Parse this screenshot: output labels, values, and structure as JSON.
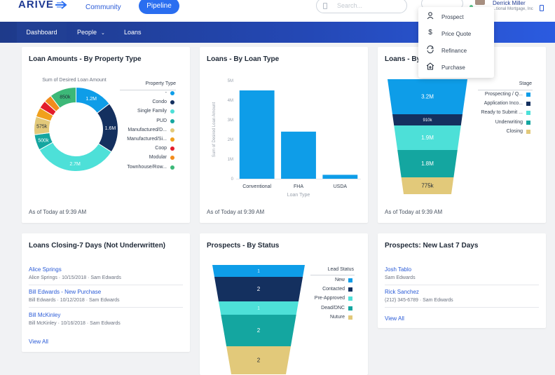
{
  "header": {
    "logo": "ARIVE",
    "nav": [
      {
        "label": "Community"
      },
      {
        "label": "Pipeline"
      }
    ],
    "search_placeholder": "Search...",
    "user": {
      "name": "Derrick Miller",
      "company": "...tional Mortgage, Inc"
    }
  },
  "subnav": {
    "items": [
      {
        "label": "Dashboard"
      },
      {
        "label": "People"
      },
      {
        "label": "Loans"
      }
    ]
  },
  "dropdown": {
    "items": [
      {
        "label": "Prospect",
        "icon": "person-icon"
      },
      {
        "label": "Price Quote",
        "icon": "dollar-icon"
      },
      {
        "label": "Refinance",
        "icon": "refresh-icon"
      },
      {
        "label": "Purchase",
        "icon": "home-plus-icon"
      }
    ]
  },
  "cards": {
    "loan_amounts": {
      "title": "Loan Amounts - By Property Type",
      "footer": "As of Today at 9:39 AM"
    },
    "loans_by_type": {
      "title": "Loans - By Loan Type",
      "footer": "As of Today at 9:39 AM"
    },
    "loans_by_stage": {
      "title": "Loans - By",
      "footer": "As of Today at 9:39 AM"
    },
    "loans_closing": {
      "title": "Loans Closing-7 Days (Not Underwritten)",
      "items": [
        {
          "name": "Alice Springs",
          "sub": "Alice Springs  ·  10/15/2018  ·  Sam Edwards"
        },
        {
          "name": "Bill Edwards - New Purchase",
          "sub": "Bill Edwards  ·  10/12/2018  ·  Sam Edwards"
        },
        {
          "name": "Bill McKinley",
          "sub": "Bill McKinley  ·  10/16/2018  ·  Sam Edwards"
        }
      ],
      "view_all": "View All"
    },
    "prospects_status": {
      "title": "Prospects - By Status"
    },
    "prospects_new": {
      "title": "Prospects: New Last 7 Days",
      "items": [
        {
          "name": "Josh Tablo",
          "sub": "Sam Edwards"
        },
        {
          "name": "Rick Sanchez",
          "sub": "(212) 345-6789  ·  Sam Edwards"
        }
      ],
      "view_all": "View All"
    }
  },
  "chart_data": [
    {
      "type": "pie",
      "title": "Loan Amounts - By Property Type",
      "series_title": "Sum of Desired Loan Amount",
      "legend_title": "Property Type",
      "categories": [
        "-",
        "Condo",
        "Single Family",
        "PUD",
        "Manufactured/D...",
        "Manufactured/Si...",
        "Coop",
        "Modular",
        "Townhouse/Row..."
      ],
      "values": [
        1.2,
        1.6,
        2.7,
        0.5,
        0.575,
        0.3,
        0.25,
        0.25,
        0.85
      ],
      "labels": [
        "1.2M",
        "1.6M",
        "2.7M",
        "500k",
        "575k",
        "",
        "",
        "",
        "850k"
      ],
      "colors": [
        "#0e9de8",
        "#14305f",
        "#4de0d8",
        "#14a6a0",
        "#e2c97a",
        "#f0a01d",
        "#e31c2b",
        "#f28c1c",
        "#3cb878"
      ],
      "donut": true
    },
    {
      "type": "bar",
      "title": "Loans - By Loan Type",
      "categories": [
        "Conventional",
        "FHA",
        "USDA"
      ],
      "values": [
        4.5,
        2.4,
        0.2
      ],
      "xlabel": "Loan Type",
      "ylabel": "Sum of Desired Loan Amount",
      "ylim": [
        0,
        5
      ],
      "yticks": [
        "0",
        "1M",
        "2M",
        "3M",
        "4M",
        "5M"
      ],
      "color": "#0e9de8"
    },
    {
      "type": "funnel",
      "title": "Loans - By",
      "legend_title": "Stage",
      "categories": [
        "Prospecting / Q...",
        "Application Inco...",
        "Ready to Submit ...",
        "Underwriting",
        "Closing"
      ],
      "labels": [
        "3.2M",
        "910k",
        "1.9M",
        "1.8M",
        "775k"
      ],
      "colors": [
        "#0e9de8",
        "#14305f",
        "#4de0d8",
        "#14a6a0",
        "#e2c97a"
      ]
    },
    {
      "type": "funnel",
      "title": "Prospects - By Status",
      "legend_title": "Lead Status",
      "categories": [
        "New",
        "Contacted",
        "Pre-Approved",
        "Dead/DNC",
        "Nuture"
      ],
      "labels": [
        "1",
        "2",
        "1",
        "2",
        "2"
      ],
      "colors": [
        "#0e9de8",
        "#14305f",
        "#4de0d8",
        "#14a6a0",
        "#e2c97a"
      ]
    }
  ]
}
